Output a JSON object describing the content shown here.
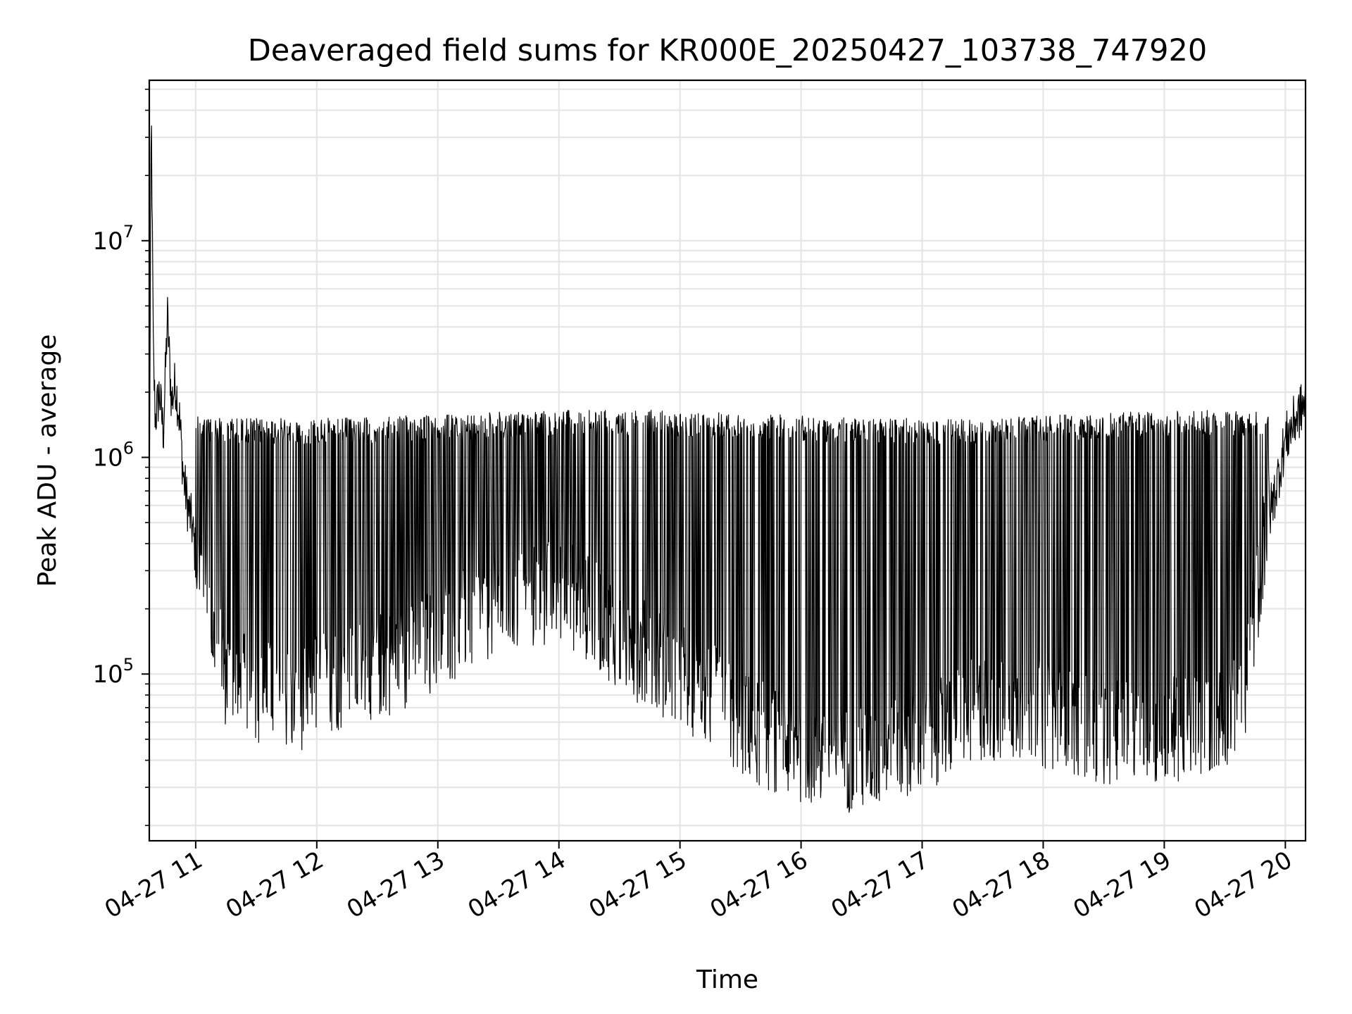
{
  "chart_data": {
    "type": "line",
    "title": "Deaveraged field sums for KR000E_20250427_103738_747920",
    "xlabel": "Time",
    "ylabel": "Peak ADU - average",
    "y_scale": "log",
    "ylim": [
      17000,
      55000000
    ],
    "xlim": [
      "2025-04-27 10:37",
      "2025-04-27 20:10"
    ],
    "x_ticks": [
      "04-27 11",
      "04-27 12",
      "04-27 13",
      "04-27 14",
      "04-27 15",
      "04-27 16",
      "04-27 17",
      "04-27 18",
      "04-27 19",
      "04-27 20"
    ],
    "y_ticks": [
      {
        "value": 100000,
        "base": "10",
        "exp": "5"
      },
      {
        "value": 1000000,
        "base": "10",
        "exp": "6"
      },
      {
        "value": 10000000,
        "base": "10",
        "exp": "7"
      }
    ],
    "grid": true,
    "line_color": "#000000",
    "series": [
      {
        "x": [
          "10:37",
          "10:38",
          "10:39",
          "10:40",
          "10:42",
          "10:44",
          "10:46",
          "10:48",
          "10:50",
          "10:52",
          "10:54",
          "10:56",
          "10:58",
          "11:00",
          "11:05",
          "11:10",
          "11:15",
          "11:20",
          "11:30",
          "11:40",
          "11:50",
          "12:00",
          "12:15",
          "12:30",
          "12:45",
          "13:00",
          "13:15",
          "13:30",
          "13:45",
          "14:00",
          "14:15",
          "14:30",
          "14:45",
          "15:00",
          "15:15",
          "15:30",
          "15:45",
          "16:00",
          "16:15",
          "16:30",
          "16:45",
          "17:00",
          "17:15",
          "17:30",
          "17:45",
          "18:00",
          "18:15",
          "18:30",
          "18:45",
          "19:00",
          "19:15",
          "19:30",
          "19:40",
          "19:45",
          "19:50",
          "19:55",
          "20:00",
          "20:05",
          "20:10"
        ],
        "y": [
          600000,
          40000000,
          3000000,
          1500000,
          2000000,
          1300000,
          4500000,
          1800000,
          2200000,
          1500000,
          800000,
          600000,
          500000,
          350000,
          250000,
          130000,
          100000,
          90000,
          85000,
          80000,
          75000,
          90000,
          100000,
          110000,
          120000,
          150000,
          180000,
          200000,
          220000,
          250000,
          200000,
          150000,
          120000,
          100000,
          80000,
          60000,
          50000,
          45000,
          42000,
          40000,
          42000,
          50000,
          60000,
          70000,
          70000,
          65000,
          60000,
          55000,
          55000,
          55000,
          58000,
          65000,
          90000,
          200000,
          450000,
          700000,
          1200000,
          1500000,
          1800000
        ]
      }
    ]
  }
}
